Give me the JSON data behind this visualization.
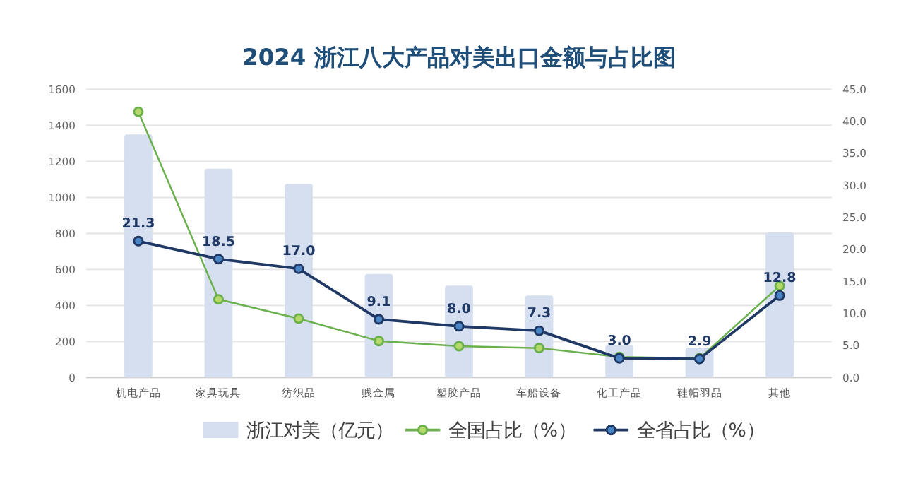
{
  "chart_data": {
    "type": "bar",
    "title": "2024 浙江八大产品对美出口金额与占比图",
    "categories": [
      "机电产品",
      "家具玩具",
      "纺织品",
      "贱金属",
      "塑胶产品",
      "车船设备",
      "化工产品",
      "鞋帽羽品",
      "其他"
    ],
    "series": [
      {
        "name": "浙江对美（亿元）",
        "color": "#d6dff0",
        "values": [
          1350,
          1160,
          1075,
          575,
          510,
          455,
          180,
          165,
          806
        ]
      },
      {
        "name": "全国占比（%）",
        "type": "line",
        "axis": "y2",
        "color": "#6ab04c",
        "values": [
          41.5,
          12.2,
          9.2,
          5.7,
          4.9,
          4.6,
          3.2,
          3.0,
          14.3
        ]
      },
      {
        "name": "全省占比（%）",
        "type": "line",
        "axis": "y2",
        "color": "#1f3864",
        "values": [
          21.3,
          18.5,
          17.0,
          9.1,
          8.0,
          7.3,
          3.0,
          2.9,
          12.8
        ],
        "value_labels": [
          "21.3",
          "18.5",
          "17.0",
          "9.1",
          "8.0",
          "7.3",
          "3.0",
          "2.9",
          "12.8"
        ]
      }
    ],
    "ylim": [
      0,
      1600
    ],
    "yticks": [
      0,
      200,
      400,
      600,
      800,
      1000,
      1200,
      1400,
      1600
    ],
    "y2lim": [
      0,
      45
    ],
    "y2ticks": [
      {
        "value": 0,
        "label": "0.0"
      },
      {
        "value": 5,
        "label": "5.0"
      },
      {
        "value": 10,
        "label": "10.0"
      },
      {
        "value": 15,
        "label": "15.0"
      },
      {
        "value": 20,
        "label": "20.0"
      },
      {
        "value": 25,
        "label": "25.0"
      },
      {
        "value": 30,
        "label": "30.0"
      },
      {
        "value": 35,
        "label": "35.0"
      },
      {
        "value": 40,
        "label": "40.0"
      },
      {
        "value": 45,
        "label": "45.0"
      }
    ],
    "grid": "y",
    "legend": "bottom",
    "marker": "circle"
  }
}
